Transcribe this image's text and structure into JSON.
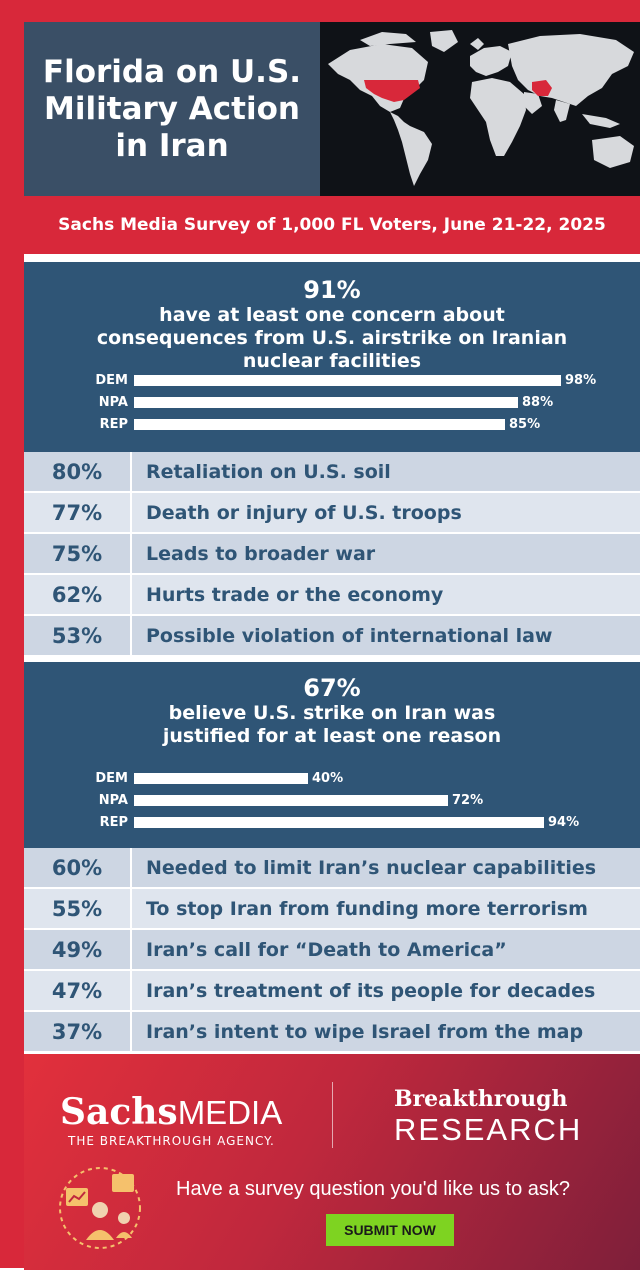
{
  "header": {
    "title": "Florida on U.S. Military Action in Iran"
  },
  "survey": "Sachs Media Survey of 1,000 FL Voters, June 21-22, 2025",
  "colors": {
    "brand_red": "#d8283a",
    "panel_blue": "#2f5576",
    "row_light": "#cdd6e3",
    "submit_green": "#7ed321"
  },
  "panel1": {
    "big_pct": "91%",
    "text": "have at least one concern about consequences from U.S. airstrike on Iranian nuclear facilities"
  },
  "rows1": [
    {
      "pct": "80%",
      "text": "Retaliation on U.S. soil"
    },
    {
      "pct": "77%",
      "text": "Death or injury of U.S. troops"
    },
    {
      "pct": "75%",
      "text": "Leads to broader war"
    },
    {
      "pct": "62%",
      "text": "Hurts trade or the economy"
    },
    {
      "pct": "53%",
      "text": "Possible violation of international law"
    }
  ],
  "panel2": {
    "big_pct": "67%",
    "text": "believe U.S. strike on Iran was justified for at least one reason"
  },
  "rows2": [
    {
      "pct": "60%",
      "text": "Needed to limit Iran’s nuclear capabilities"
    },
    {
      "pct": "55%",
      "text": "To stop Iran from funding more terrorism"
    },
    {
      "pct": "49%",
      "text": "Iran’s call for “Death to America”"
    },
    {
      "pct": "47%",
      "text": "Iran’s treatment of its people for decades"
    },
    {
      "pct": "37%",
      "text": "Iran’s intent to wipe Israel from the map"
    }
  ],
  "chart_data": [
    {
      "type": "bar",
      "orientation": "horizontal",
      "categories": [
        "DEM",
        "NPA",
        "REP"
      ],
      "values": [
        98,
        88,
        85
      ],
      "value_labels": [
        "98%",
        "88%",
        "85%"
      ],
      "xlim": [
        0,
        100
      ]
    },
    {
      "type": "bar",
      "orientation": "horizontal",
      "categories": [
        "DEM",
        "NPA",
        "REP"
      ],
      "values": [
        40,
        72,
        94
      ],
      "value_labels": [
        "40%",
        "72%",
        "94%"
      ],
      "xlim": [
        0,
        100
      ]
    }
  ],
  "footer": {
    "logo1_sachs": "Sachs",
    "logo1_media": "MEDIA",
    "logo1_tagline": "THE BREAKTHROUGH AGENCY.",
    "logo2_line1": "Breakthrough",
    "logo2_line2": "RESEARCH",
    "cta": "Have a survey question you'd like us to ask?",
    "submit_label": "SUBMIT NOW",
    "illustration_icon": "survey-people-icon"
  }
}
